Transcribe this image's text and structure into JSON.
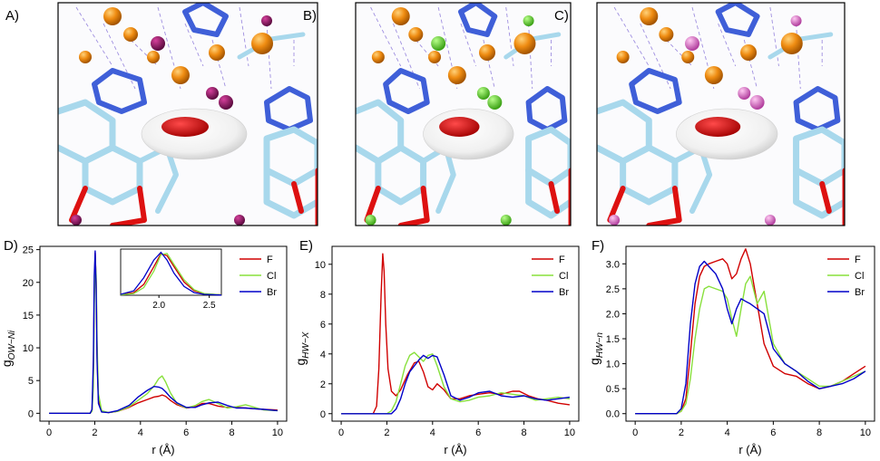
{
  "panel_labels": [
    "A)",
    "B)",
    "C)",
    "D)",
    "E)",
    "F)"
  ],
  "molecular_panels": [
    {
      "label": "A)",
      "ion_color": "#9b1870",
      "ion_highlight": "#c4368f"
    },
    {
      "label": "B)",
      "ion_color": "#63d832",
      "ion_highlight": "#9af26a"
    },
    {
      "label": "C)",
      "ion_color": "#d96bc6",
      "ion_highlight": "#f2a6e6"
    }
  ],
  "colors": {
    "F": "#d00000",
    "Cl": "#88e03c",
    "Br": "#0000c8",
    "carbon": "#a8d8ec",
    "nitrogen": "#3f5fd8",
    "oxygen": "#dd1111",
    "metal": "#ef8c12",
    "surface": "#f2f2f2",
    "density": "#e00000"
  },
  "chart_data": [
    {
      "type": "line",
      "panel": "D)",
      "ylabel_main": "g",
      "ylabel_sub": "OW−Ni",
      "xlabel": "r (Å)",
      "xlim": [
        -0.4,
        10.4
      ],
      "ylim": [
        -1.2,
        25.5
      ],
      "xticks": [
        0,
        2,
        4,
        6,
        8,
        10
      ],
      "yticks": [
        0,
        5,
        10,
        15,
        20,
        25
      ],
      "legend": [
        "F",
        "Cl",
        "Br"
      ],
      "legend_position": "top-right",
      "series": [
        {
          "name": "F",
          "x": [
            0,
            1.8,
            1.88,
            1.94,
            1.98,
            2.02,
            2.06,
            2.1,
            2.16,
            2.3,
            2.6,
            3.0,
            3.5,
            3.9,
            4.3,
            4.6,
            4.8,
            4.95,
            5.1,
            5.3,
            5.6,
            6.0,
            6.4,
            6.7,
            7.0,
            7.4,
            7.8,
            8.2,
            8.6,
            9.0,
            9.4,
            10.0
          ],
          "y": [
            0,
            0,
            0.5,
            6,
            18,
            24.5,
            20,
            9,
            2,
            0.3,
            0.1,
            0.3,
            0.9,
            1.6,
            2.1,
            2.5,
            2.6,
            2.8,
            2.6,
            2.0,
            1.3,
            0.8,
            1.0,
            1.5,
            1.5,
            1.1,
            0.9,
            0.9,
            0.8,
            0.7,
            0.6,
            0.5
          ]
        },
        {
          "name": "Cl",
          "x": [
            0,
            1.8,
            1.88,
            1.94,
            1.98,
            2.02,
            2.06,
            2.1,
            2.16,
            2.3,
            2.6,
            3.0,
            3.5,
            3.9,
            4.3,
            4.6,
            4.8,
            4.95,
            5.1,
            5.3,
            5.6,
            6.0,
            6.4,
            6.7,
            7.0,
            7.4,
            7.8,
            8.2,
            8.6,
            9.0,
            9.4,
            10.0
          ],
          "y": [
            0,
            0,
            0.3,
            4,
            16,
            23.5,
            21,
            11,
            3,
            0.4,
            0.1,
            0.3,
            1.0,
            2.0,
            3.0,
            4.2,
            5.3,
            5.7,
            4.8,
            3.2,
            1.5,
            0.8,
            1.2,
            1.8,
            2.1,
            1.5,
            0.8,
            1.0,
            1.3,
            0.9,
            0.5,
            0.4
          ]
        },
        {
          "name": "Br",
          "x": [
            0,
            1.8,
            1.88,
            1.94,
            1.98,
            2.02,
            2.06,
            2.1,
            2.16,
            2.3,
            2.6,
            3.0,
            3.5,
            3.9,
            4.3,
            4.6,
            4.8,
            4.95,
            5.1,
            5.3,
            5.6,
            6.0,
            6.4,
            6.7,
            7.0,
            7.4,
            7.8,
            8.2,
            8.6,
            9.0,
            9.4,
            10.0
          ],
          "y": [
            0,
            0,
            0.6,
            8,
            21,
            24.8,
            19,
            8,
            1.5,
            0.2,
            0.1,
            0.4,
            1.2,
            2.5,
            3.5,
            4.1,
            4.0,
            3.8,
            3.3,
            2.5,
            1.6,
            0.9,
            0.9,
            1.3,
            1.6,
            1.7,
            1.2,
            0.8,
            0.8,
            0.7,
            0.6,
            0.4
          ]
        }
      ],
      "inset": {
        "xlim": [
          1.62,
          2.62
        ],
        "xticks": [
          2.0,
          2.5
        ],
        "series": [
          {
            "name": "F",
            "x": [
              1.62,
              1.75,
              1.85,
              1.95,
              2.02,
              2.08,
              2.15,
              2.25,
              2.35,
              2.45,
              2.62
            ],
            "y": [
              0.3,
              1.2,
              5,
              13,
              19,
              18,
              13,
              6,
              2,
              0.6,
              0.2
            ]
          },
          {
            "name": "Cl",
            "x": [
              1.62,
              1.75,
              1.85,
              1.95,
              2.02,
              2.08,
              2.15,
              2.25,
              2.35,
              2.45,
              2.62
            ],
            "y": [
              0.2,
              0.8,
              3.5,
              11,
              18.5,
              19,
              14,
              7,
              2.5,
              0.8,
              0.2
            ]
          },
          {
            "name": "Br",
            "x": [
              1.62,
              1.75,
              1.85,
              1.95,
              2.02,
              2.08,
              2.15,
              2.25,
              2.35,
              2.45,
              2.62
            ],
            "y": [
              0.4,
              2,
              8,
              16,
              19.5,
              16,
              10,
              4,
              1.2,
              0.4,
              0.1
            ]
          }
        ]
      }
    },
    {
      "type": "line",
      "panel": "E)",
      "ylabel_main": "g",
      "ylabel_sub": "HW−X",
      "xlabel": "r (Å)",
      "xlim": [
        -0.4,
        10.4
      ],
      "ylim": [
        -0.5,
        11.2
      ],
      "xticks": [
        0,
        2,
        4,
        6,
        8,
        10
      ],
      "yticks": [
        0,
        2,
        4,
        6,
        8,
        10
      ],
      "legend": [
        "F",
        "Cl",
        "Br"
      ],
      "legend_position": "top-right",
      "series": [
        {
          "name": "F",
          "x": [
            0,
            1.4,
            1.55,
            1.65,
            1.75,
            1.82,
            1.88,
            1.95,
            2.05,
            2.2,
            2.4,
            2.6,
            2.9,
            3.2,
            3.4,
            3.6,
            3.8,
            4.0,
            4.2,
            4.5,
            4.8,
            5.2,
            5.6,
            6.0,
            6.5,
            7.0,
            7.5,
            7.8,
            8.2,
            8.6,
            9.0,
            9.5,
            10.0
          ],
          "y": [
            0,
            0,
            0.5,
            3,
            8,
            10.7,
            9.5,
            6,
            3,
            1.5,
            1.2,
            1.6,
            2.6,
            3.4,
            3.5,
            2.8,
            1.8,
            1.6,
            2.0,
            1.6,
            1.0,
            1.0,
            1.2,
            1.3,
            1.4,
            1.3,
            1.5,
            1.5,
            1.2,
            1.0,
            0.9,
            0.7,
            0.6
          ]
        },
        {
          "name": "Cl",
          "x": [
            0,
            2.0,
            2.2,
            2.4,
            2.6,
            2.8,
            3.0,
            3.2,
            3.4,
            3.6,
            3.8,
            4.0,
            4.2,
            4.5,
            4.8,
            5.2,
            5.6,
            6.0,
            6.5,
            7.0,
            7.5,
            8.0,
            8.5,
            9.0,
            9.5,
            10.0
          ],
          "y": [
            0,
            0,
            0.2,
            0.8,
            2.0,
            3.2,
            3.9,
            4.1,
            3.8,
            3.5,
            3.9,
            4.0,
            3.2,
            1.8,
            1.0,
            0.8,
            0.9,
            1.1,
            1.2,
            1.4,
            1.3,
            1.2,
            0.9,
            1.0,
            1.1,
            1.0
          ]
        },
        {
          "name": "Br",
          "x": [
            0,
            2.2,
            2.4,
            2.6,
            2.8,
            3.0,
            3.2,
            3.4,
            3.6,
            3.8,
            4.0,
            4.2,
            4.5,
            4.8,
            5.2,
            5.6,
            6.0,
            6.5,
            7.0,
            7.5,
            8.0,
            8.5,
            9.0,
            9.5,
            10.0
          ],
          "y": [
            0,
            0,
            0.3,
            1.0,
            2.0,
            2.8,
            3.2,
            3.6,
            3.9,
            3.7,
            3.9,
            3.8,
            2.6,
            1.2,
            0.9,
            1.1,
            1.4,
            1.5,
            1.2,
            1.1,
            1.2,
            1.0,
            0.9,
            1.0,
            1.1
          ]
        }
      ]
    },
    {
      "type": "line",
      "panel": "F)",
      "ylabel_main": "g",
      "ylabel_sub": "HW−n",
      "xlabel": "r (Å)",
      "xlim": [
        -0.4,
        10.4
      ],
      "ylim": [
        -0.15,
        3.35
      ],
      "xticks": [
        0,
        2,
        4,
        6,
        8,
        10
      ],
      "yticks": [
        0.0,
        0.5,
        1.0,
        1.5,
        2.0,
        2.5,
        3.0
      ],
      "legend": [
        "F",
        "Cl",
        "Br"
      ],
      "legend_position": "top-right",
      "series": [
        {
          "name": "F",
          "x": [
            0,
            1.8,
            2.0,
            2.2,
            2.4,
            2.6,
            2.8,
            3.0,
            3.2,
            3.5,
            3.8,
            4.0,
            4.2,
            4.4,
            4.6,
            4.8,
            5.0,
            5.3,
            5.6,
            6.0,
            6.5,
            7.0,
            7.5,
            8.0,
            8.5,
            9.0,
            9.5,
            10.0
          ],
          "y": [
            0,
            0,
            0.05,
            0.3,
            1.2,
            2.2,
            2.75,
            2.95,
            3.0,
            3.05,
            3.1,
            3.0,
            2.7,
            2.8,
            3.1,
            3.3,
            3.0,
            2.2,
            1.4,
            0.95,
            0.8,
            0.75,
            0.6,
            0.5,
            0.55,
            0.65,
            0.8,
            0.95
          ]
        },
        {
          "name": "Cl",
          "x": [
            0,
            1.8,
            2.0,
            2.2,
            2.4,
            2.6,
            2.8,
            3.0,
            3.2,
            3.5,
            3.8,
            4.0,
            4.2,
            4.4,
            4.6,
            4.8,
            5.0,
            5.3,
            5.6,
            6.0,
            6.5,
            7.0,
            7.5,
            8.0,
            8.5,
            9.0,
            9.5,
            10.0
          ],
          "y": [
            0,
            0,
            0.05,
            0.2,
            0.7,
            1.5,
            2.1,
            2.5,
            2.55,
            2.5,
            2.45,
            2.3,
            1.9,
            1.55,
            2.1,
            2.6,
            2.75,
            2.2,
            2.45,
            1.4,
            1.0,
            0.85,
            0.7,
            0.55,
            0.55,
            0.65,
            0.75,
            0.85
          ]
        },
        {
          "name": "Br",
          "x": [
            0,
            1.8,
            2.0,
            2.2,
            2.4,
            2.6,
            2.8,
            3.0,
            3.2,
            3.5,
            3.8,
            4.0,
            4.2,
            4.4,
            4.6,
            4.8,
            5.0,
            5.3,
            5.6,
            6.0,
            6.5,
            7.0,
            7.5,
            8.0,
            8.5,
            9.0,
            9.5,
            10.0
          ],
          "y": [
            0,
            0,
            0.1,
            0.6,
            1.8,
            2.6,
            2.95,
            3.05,
            2.95,
            2.8,
            2.5,
            2.1,
            1.8,
            2.1,
            2.3,
            2.25,
            2.2,
            2.1,
            2.0,
            1.3,
            1.0,
            0.85,
            0.65,
            0.5,
            0.55,
            0.6,
            0.7,
            0.85
          ]
        }
      ]
    }
  ]
}
